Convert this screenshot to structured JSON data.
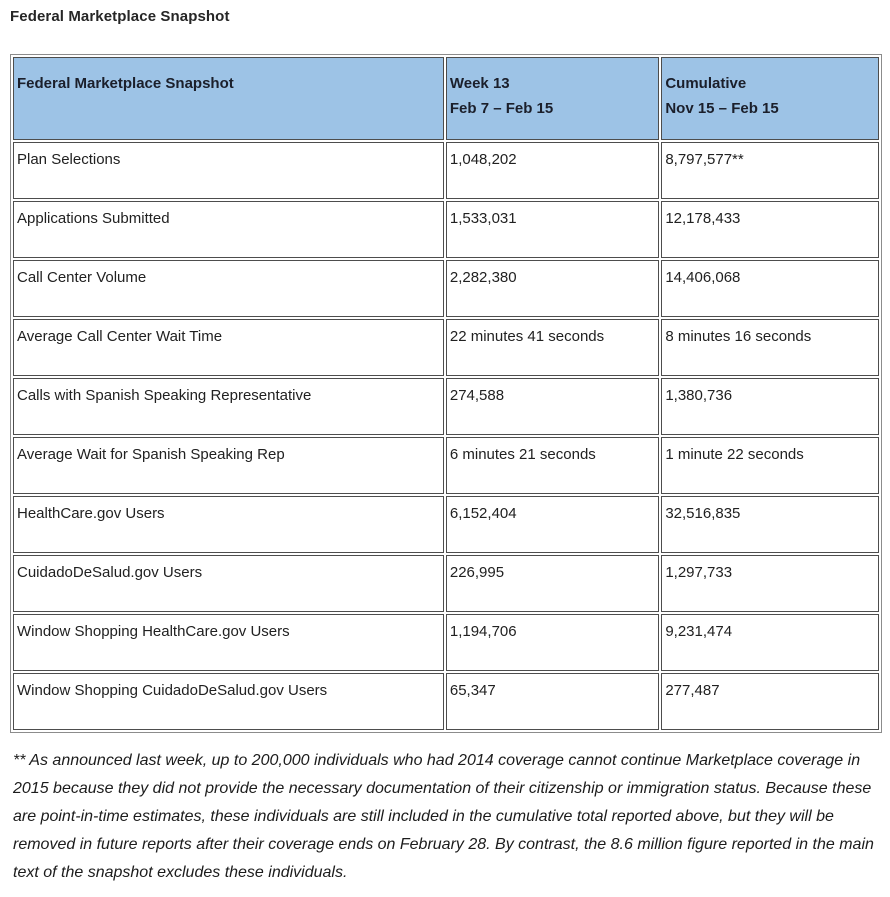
{
  "page_title": "Federal Marketplace Snapshot",
  "table": {
    "header": {
      "metric_label": "Federal Marketplace Snapshot",
      "week_line1": "Week 13",
      "week_line2": "Feb 7 – Feb 15",
      "cumulative_line1": "Cumulative",
      "cumulative_line2": "Nov 15 – Feb 15"
    },
    "rows": [
      {
        "metric": "Plan Selections",
        "week": "1,048,202",
        "cumulative": "8,797,577**"
      },
      {
        "metric": "Applications Submitted",
        "week": "1,533,031",
        "cumulative": "12,178,433"
      },
      {
        "metric": "Call Center Volume",
        "week": "2,282,380",
        "cumulative": "14,406,068"
      },
      {
        "metric": "Average Call Center Wait Time",
        "week": "22 minutes 41 seconds",
        "cumulative": "8 minutes 16 seconds"
      },
      {
        "metric": "Calls with Spanish Speaking Representative",
        "week": "274,588",
        "cumulative": "1,380,736"
      },
      {
        "metric": "Average Wait for Spanish Speaking Rep",
        "week": "6 minutes 21 seconds",
        "cumulative": "1 minute 22 seconds"
      },
      {
        "metric": "HealthCare.gov Users",
        "week": "6,152,404",
        "cumulative": "32,516,835"
      },
      {
        "metric": "CuidadoDeSalud.gov Users",
        "week": "226,995",
        "cumulative": "1,297,733"
      },
      {
        "metric": "Window Shopping HealthCare.gov Users",
        "week": "1,194,706",
        "cumulative": "9,231,474"
      },
      {
        "metric": "Window Shopping CuidadoDeSalud.gov Users",
        "week": "65,347",
        "cumulative": "277,487"
      }
    ]
  },
  "footnote": "** As announced last week, up to 200,000 individuals who had 2014 coverage cannot continue Marketplace coverage in 2015 because they did not provide the necessary documentation of their citizenship or immigration status. Because these are point-in-time estimates, these individuals are still included in the cumulative total reported above, but they will be removed in future reports after their coverage ends on February 28. By contrast, the 8.6 million figure reported in the main text of the snapshot excludes these individuals.",
  "colors": {
    "header_background": "#9dc3e6",
    "cell_border": "#4d4d4d",
    "outer_border": "#8c8c8c",
    "text": "#212121"
  }
}
